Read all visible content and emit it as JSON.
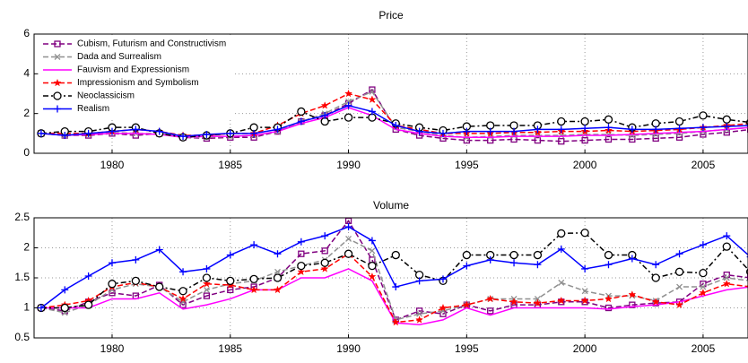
{
  "chart_data": [
    {
      "type": "line",
      "title": "Price",
      "x": [
        1977,
        1978,
        1979,
        1980,
        1981,
        1982,
        1983,
        1984,
        1985,
        1986,
        1987,
        1988,
        1989,
        1990,
        1991,
        1992,
        1993,
        1994,
        1995,
        1996,
        1997,
        1998,
        1999,
        2000,
        2001,
        2002,
        2003,
        2004,
        2005,
        2006,
        2007
      ],
      "xlim": [
        1976.7,
        2006.9
      ],
      "xticks": [
        1980,
        1985,
        1990,
        1995,
        2000,
        2005
      ],
      "ylim": [
        0,
        6
      ],
      "yticks": [
        0,
        2,
        4,
        6
      ],
      "grid": true,
      "legend": "upper left",
      "series": [
        {
          "name": "Cubism, Futurism and Constructivism",
          "color": "#800080",
          "marker": "square",
          "dash": "6,3",
          "values": [
            1,
            0.9,
            0.9,
            1,
            0.9,
            1,
            0.8,
            0.75,
            0.8,
            0.8,
            1.1,
            1.6,
            1.9,
            2.5,
            3.2,
            1.2,
            0.9,
            0.75,
            0.65,
            0.65,
            0.7,
            0.65,
            0.6,
            0.65,
            0.7,
            0.7,
            0.75,
            0.8,
            0.95,
            1.05,
            1.2
          ]
        },
        {
          "name": "Dada and Surrealism",
          "color": "#909090",
          "marker": "x",
          "dash": "6,3",
          "values": [
            1,
            0.9,
            0.95,
            1.05,
            1,
            1,
            0.8,
            0.8,
            0.85,
            0.9,
            1.1,
            1.6,
            2,
            2.6,
            3.1,
            1.3,
            1.1,
            0.9,
            0.8,
            0.85,
            0.9,
            0.9,
            0.9,
            0.95,
            0.95,
            0.9,
            0.95,
            1,
            1.1,
            1.2,
            1.3
          ]
        },
        {
          "name": "Fauvism and Expressionism",
          "color": "#ff00ff",
          "marker": "none",
          "dash": "none",
          "values": [
            1,
            0.9,
            0.95,
            1,
            1,
            0.95,
            0.8,
            0.85,
            0.85,
            0.9,
            1.1,
            1.5,
            1.8,
            2.3,
            1.9,
            1.2,
            1,
            0.85,
            0.8,
            0.8,
            0.85,
            0.85,
            0.85,
            0.9,
            0.9,
            0.95,
            1,
            1.05,
            1.1,
            1.2,
            1.3
          ]
        },
        {
          "name": "Impressionism and Symbolism",
          "color": "#ff0000",
          "marker": "star",
          "dash": "6,3",
          "values": [
            1,
            1,
            1,
            1.1,
            1.2,
            1.1,
            0.9,
            0.9,
            1,
            1,
            1.4,
            2,
            2.4,
            3,
            2.7,
            1.4,
            1.2,
            1,
            1,
            1,
            1.05,
            1.05,
            1.1,
            1.1,
            1.15,
            1.1,
            1.15,
            1.2,
            1.3,
            1.4,
            1.5
          ]
        },
        {
          "name": "Neoclassicism",
          "color": "#000000",
          "marker": "circle",
          "dash": "6,3,2,3",
          "values": [
            1,
            1.1,
            1.1,
            1.3,
            1.3,
            1,
            0.8,
            0.9,
            1,
            1.3,
            1.3,
            2.1,
            1.6,
            1.8,
            1.8,
            1.5,
            1.3,
            1.15,
            1.35,
            1.4,
            1.4,
            1.4,
            1.6,
            1.6,
            1.7,
            1.3,
            1.5,
            1.6,
            1.9,
            1.7,
            1.55
          ]
        },
        {
          "name": "Realism",
          "color": "#0000ff",
          "marker": "plus",
          "dash": "none",
          "values": [
            1,
            0.9,
            1,
            1.1,
            1.2,
            1.1,
            0.85,
            0.95,
            1,
            1,
            1.2,
            1.6,
            1.9,
            2.4,
            2.1,
            1.4,
            1.1,
            1,
            1.1,
            1.1,
            1.1,
            1.2,
            1.2,
            1.25,
            1.3,
            1.2,
            1.2,
            1.25,
            1.3,
            1.35,
            1.4
          ]
        }
      ]
    },
    {
      "type": "line",
      "title": "Volume",
      "x": [
        1977,
        1978,
        1979,
        1980,
        1981,
        1982,
        1983,
        1984,
        1985,
        1986,
        1987,
        1988,
        1989,
        1990,
        1991,
        1992,
        1993,
        1994,
        1995,
        1996,
        1997,
        1998,
        1999,
        2000,
        2001,
        2002,
        2003,
        2004,
        2005,
        2006,
        2007
      ],
      "xlim": [
        1976.7,
        2006.9
      ],
      "xticks": [
        1980,
        1985,
        1990,
        1995,
        2000,
        2005
      ],
      "ylim": [
        0.5,
        2.5
      ],
      "yticks": [
        0.5,
        1,
        1.5,
        2,
        2.5
      ],
      "grid": true,
      "series": [
        {
          "name": "Cubism, Futurism and Constructivism",
          "color": "#800080",
          "marker": "square",
          "dash": "6,3",
          "values": [
            1,
            0.95,
            1.1,
            1.25,
            1.2,
            1.38,
            1.05,
            1.2,
            1.3,
            1.35,
            1.5,
            1.9,
            1.95,
            2.45,
            1.8,
            0.8,
            0.95,
            0.9,
            1.05,
            0.95,
            1.05,
            1.05,
            1.1,
            1.1,
            1,
            1.05,
            1.08,
            1.1,
            1.4,
            1.55,
            1.5
          ]
        },
        {
          "name": "Dada and Surrealism",
          "color": "#909090",
          "marker": "x",
          "dash": "6,3",
          "values": [
            1,
            0.92,
            1.05,
            1.3,
            1.4,
            1.35,
            1.1,
            1.3,
            1.4,
            1.45,
            1.6,
            1.7,
            1.8,
            2.15,
            1.95,
            0.8,
            0.9,
            0.95,
            1.05,
            1.15,
            1.15,
            1.15,
            1.42,
            1.28,
            1.2,
            1.2,
            1.12,
            1.35,
            1.35,
            1.5,
            1.45
          ]
        },
        {
          "name": "Fauvism and Expressionism",
          "color": "#ff00ff",
          "marker": "none",
          "dash": "none",
          "values": [
            1,
            1,
            1,
            1.15,
            1.15,
            1.25,
            0.98,
            1.05,
            1.15,
            1.3,
            1.3,
            1.5,
            1.5,
            1.65,
            1.45,
            0.75,
            0.72,
            0.8,
            1,
            0.88,
            1,
            1,
            1,
            1,
            0.98,
            1.02,
            1.05,
            1.1,
            1.2,
            1.3,
            1.35
          ]
        },
        {
          "name": "Impressionism and Symbolism",
          "color": "#ff0000",
          "marker": "star",
          "dash": "6,3",
          "values": [
            1,
            1.05,
            1.12,
            1.35,
            1.42,
            1.35,
            1.15,
            1.4,
            1.38,
            1.3,
            1.3,
            1.6,
            1.65,
            1.9,
            1.52,
            0.76,
            0.8,
            1,
            1.05,
            1.15,
            1.1,
            1.08,
            1.12,
            1.12,
            1.15,
            1.22,
            1.1,
            1.05,
            1.25,
            1.4,
            1.35
          ]
        },
        {
          "name": "Neoclassicism",
          "color": "#000000",
          "marker": "circle",
          "dash": "6,3,2,3",
          "values": [
            1,
            1,
            1.05,
            1.4,
            1.45,
            1.35,
            1.28,
            1.5,
            1.45,
            1.48,
            1.5,
            1.7,
            1.75,
            1.9,
            1.7,
            1.88,
            1.55,
            1.45,
            1.88,
            1.88,
            1.88,
            1.88,
            2.24,
            2.25,
            1.88,
            1.88,
            1.5,
            1.6,
            1.58,
            2.02,
            1.6
          ]
        },
        {
          "name": "Realism",
          "color": "#0000ff",
          "marker": "plus",
          "dash": "none",
          "values": [
            1,
            1.3,
            1.53,
            1.75,
            1.8,
            1.97,
            1.6,
            1.65,
            1.88,
            2.05,
            1.9,
            2.1,
            2.2,
            2.35,
            2.12,
            1.35,
            1.45,
            1.48,
            1.7,
            1.8,
            1.75,
            1.72,
            1.98,
            1.65,
            1.72,
            1.82,
            1.72,
            1.9,
            2.05,
            2.2,
            1.85
          ]
        }
      ]
    }
  ]
}
